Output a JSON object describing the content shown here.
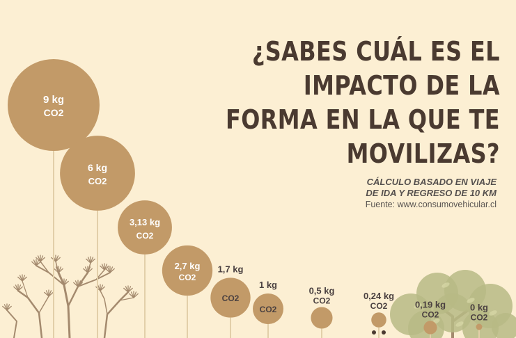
{
  "title_lines": [
    "¿SABES CUÁL ES EL IMPACTO DE LA",
    "FORMA EN LA QUE TE MOVILIZAS?"
  ],
  "note": {
    "line1": "CÁLCULO BASADO EN VIAJE",
    "line2": "DE IDA Y REGRESO DE 10 KM",
    "source": "Fuente: www.consumovehicular.cl"
  },
  "colors": {
    "background": "#fcefd3",
    "bubble": "#c29a68",
    "stem": "#e2cfa9",
    "title": "#4a3a30",
    "label_dark": "#4a4040",
    "label_light": "#ffffff",
    "tree_brown": "#a48a6e",
    "tree_green": "#b7ba85"
  },
  "chart_data": {
    "type": "bubble",
    "unit": "kg CO2",
    "values": [
      9,
      6,
      3.13,
      2.7,
      1.7,
      1,
      0.5,
      0.24,
      0.19,
      0
    ],
    "labels": [
      [
        "9 kg",
        "CO2"
      ],
      [
        "6 kg",
        "CO2"
      ],
      [
        "3,13 kg",
        "CO2"
      ],
      [
        "2,7 kg",
        "CO2"
      ],
      [
        "1,7 kg",
        "CO2"
      ],
      [
        "1 kg",
        "CO2"
      ],
      [
        "0,5 kg",
        "CO2"
      ],
      [
        "0,24 kg",
        "CO2"
      ],
      [
        "0,19 kg",
        "CO2"
      ],
      [
        "0 kg",
        "CO2"
      ]
    ],
    "decorations": [
      "bare-tree-left",
      "green-tree-right"
    ]
  }
}
